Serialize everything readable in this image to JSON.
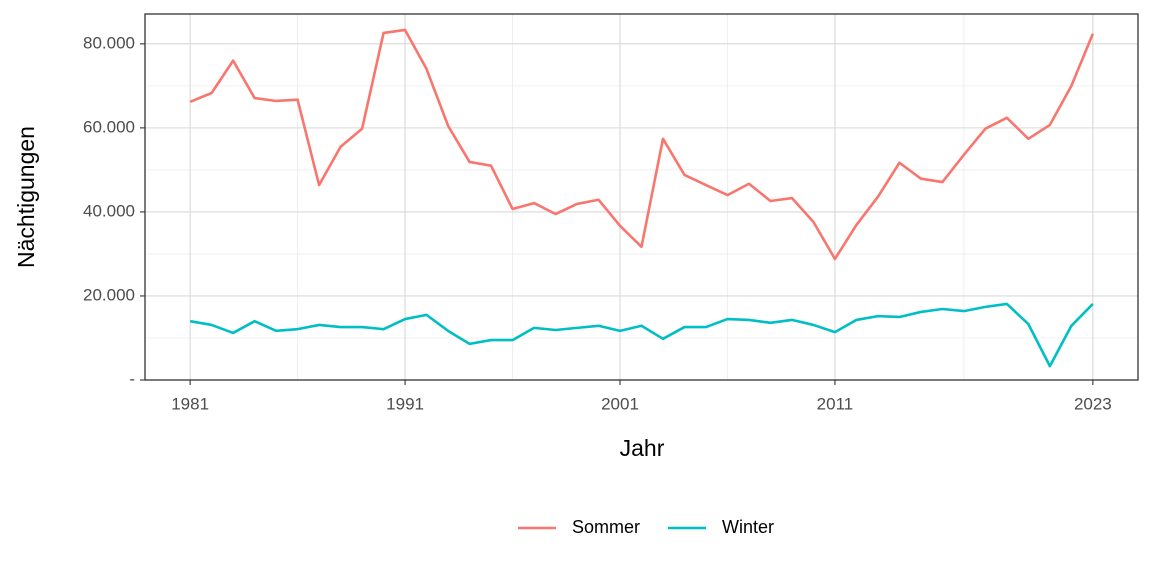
{
  "chart_data": {
    "type": "line",
    "x_label": "Jahr",
    "y_label": "Nächtigungen",
    "x": [
      1981,
      1982,
      1983,
      1984,
      1985,
      1986,
      1987,
      1988,
      1989,
      1990,
      1991,
      1992,
      1993,
      1994,
      1995,
      1996,
      1997,
      1998,
      1999,
      2000,
      2001,
      2002,
      2003,
      2004,
      2005,
      2006,
      2007,
      2008,
      2009,
      2010,
      2011,
      2012,
      2013,
      2014,
      2015,
      2016,
      2017,
      2018,
      2019,
      2020,
      2021,
      2022,
      2023
    ],
    "series": [
      {
        "name": "Sommer",
        "color": "#F8766D",
        "values": [
          66200,
          68300,
          76000,
          67100,
          66400,
          66700,
          46400,
          55500,
          59800,
          82600,
          83300,
          74000,
          60500,
          51900,
          51000,
          40700,
          42100,
          39500,
          41900,
          42900,
          36700,
          31700,
          57400,
          48800,
          46400,
          44000,
          46700,
          42600,
          43300,
          37600,
          28800,
          36900,
          43600,
          51700,
          47900,
          47100,
          53600,
          59800,
          62400,
          57400,
          60700,
          70000,
          82400
        ]
      },
      {
        "name": "Winter",
        "color": "#00BFC4",
        "values": [
          14000,
          13100,
          11200,
          14000,
          11700,
          12100,
          13100,
          12600,
          12600,
          12100,
          14500,
          15500,
          11700,
          8600,
          9500,
          9500,
          12400,
          11900,
          12400,
          12900,
          11700,
          12900,
          9800,
          12600,
          12600,
          14500,
          14300,
          13600,
          14300,
          13100,
          11400,
          14300,
          15200,
          15000,
          16200,
          16900,
          16400,
          17400,
          18100,
          13300,
          3300,
          12900,
          18100
        ]
      }
    ],
    "xlim": [
      1978.9,
      2025.1
    ],
    "xticks": [
      1981,
      1991,
      2001,
      2011,
      2023
    ],
    "ylim": [
      0,
      87100
    ],
    "yticks": [
      {
        "value": 0,
        "label": "-"
      },
      {
        "value": 20000,
        "label": "20.000"
      },
      {
        "value": 40000,
        "label": "40.000"
      },
      {
        "value": 60000,
        "label": "60.000"
      },
      {
        "value": 80000,
        "label": "80.000"
      }
    ],
    "grid": true,
    "legend": "bottom"
  }
}
